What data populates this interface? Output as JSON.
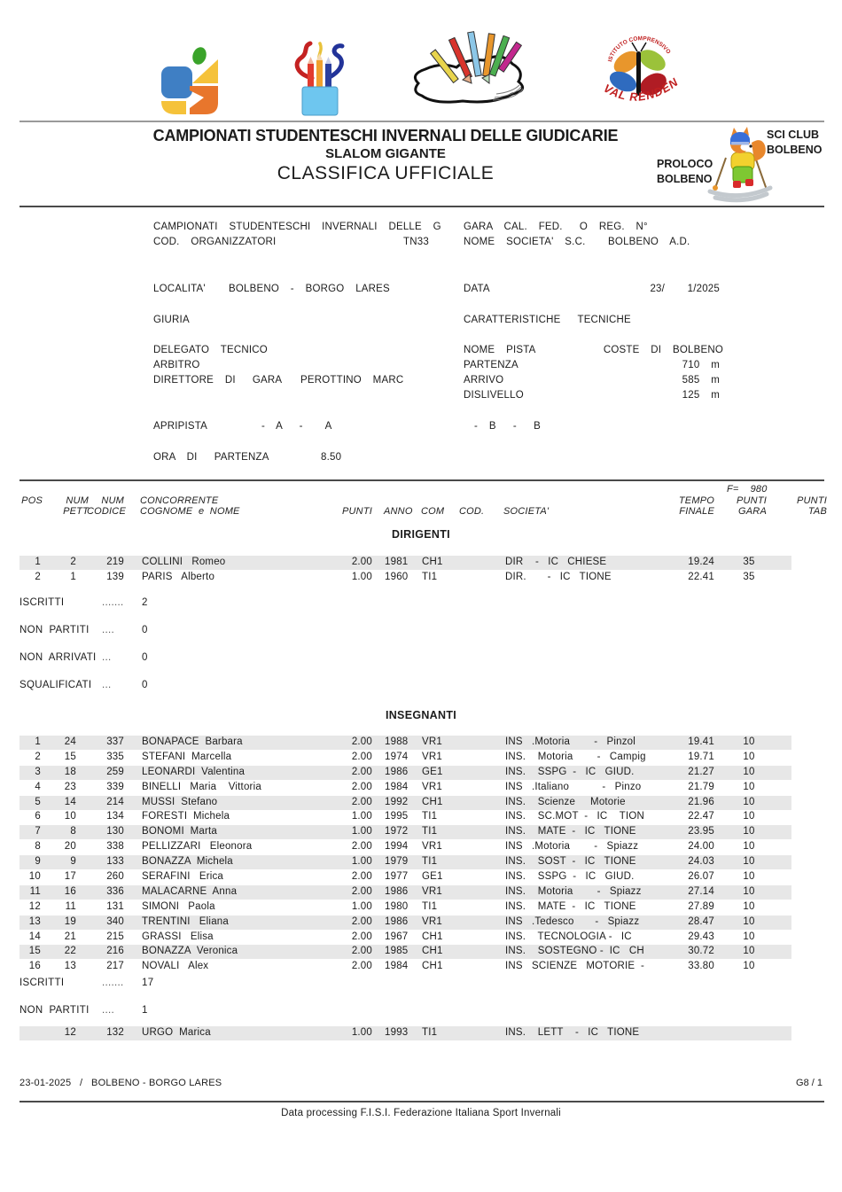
{
  "title": {
    "line1": "CAMPIONATI STUDENTESCHI INVERNALI DELLE GIUDICARIE",
    "line2": "SLALOM GIGANTE",
    "line3": "CLASSIFICA UFFICIALE"
  },
  "club_badge": {
    "sci_club": "SCI CLUB\nBOLBENO",
    "proloco": "PROLOCO\nBOLBENO"
  },
  "logos": {
    "val_rendena_text": "VAL RENDENA",
    "val_rendena_arc": "ISTITUTO COMPRENSIVO"
  },
  "info": {
    "event_line": "CAMPIONATI  STUDENTESCHI  INVERNALI  DELLE  G",
    "gara_label": "GARA  CAL.  FED.   O  REG.  N°",
    "cod_org_label": "COD.  ORGANIZZATORI",
    "cod_org_value": "TN33",
    "nome_societa": "NOME  SOCIETA'  S.C.    BOLBENO  A.D.",
    "localita_label": "LOCALITA'",
    "localita_value": "BOLBENO  -  BORGO  LARES",
    "data_label": "DATA",
    "data_value": "23/    1/2025",
    "giuria_label": "GIURIA",
    "caratteristiche_label": "CARATTERISTICHE   TECNICHE",
    "delegato_label": "DELEGATO  TECNICO",
    "nome_pista_label": "NOME  PISTA",
    "nome_pista_value": "COSTE  DI  BOLBENO",
    "arbitro_label": "ARBITRO",
    "partenza_label": "PARTENZA",
    "partenza_value": "710  m",
    "direttore_label": "DIRETTORE  DI   GARA",
    "direttore_value": "PEROTTINO  MARC",
    "arrivo_label": "ARRIVO",
    "arrivo_value": "585  m",
    "dislivello_label": "DISLIVELLO",
    "dislivello_value": "125  m",
    "apripista_label": "APRIPISTA",
    "apripista_a": "-  A   -    A",
    "apripista_b": "-  B   -   B",
    "ora_label": "ORA  DI   PARTENZA",
    "ora_value": "8.50"
  },
  "table": {
    "f_line": "F=    980",
    "headers_row1": {
      "pos": "POS",
      "pett": "NUM",
      "codice": "NUM",
      "nome": "CONCORRENTE",
      "tempo": "TEMPO",
      "gara": "PUNTI",
      "tab": "PUNTI"
    },
    "headers_row2": {
      "pett": "PETT",
      "codice": "CODICE",
      "nome": "COGNOME  e  NOME",
      "punti": "PUNTI",
      "anno": "ANNO",
      "com": "COM",
      "cod": "COD.",
      "societa": "SOCIETA'",
      "tempo": "FINALE",
      "gara": "GARA",
      "tab": "TAB"
    },
    "sections": [
      {
        "title": "DIRIGENTI",
        "rows": [
          {
            "pos": "1",
            "pett": "2",
            "codice": "219",
            "nome": "COLLINI   Romeo",
            "punti": "2.00",
            "anno": "1981",
            "com": "CH1",
            "cod": "",
            "societa": "DIR    -   IC   CHIESE",
            "tempo": "19.24",
            "gara": "35",
            "tab": "",
            "shaded": true
          },
          {
            "pos": "2",
            "pett": "1",
            "codice": "139",
            "nome": "PARIS   Alberto",
            "punti": "1.00",
            "anno": "1960",
            "com": "TI1",
            "cod": "",
            "societa": "DIR.       -   IC   TIONE",
            "tempo": "22.41",
            "gara": "35",
            "tab": "",
            "shaded": false
          }
        ],
        "stats": [
          {
            "label": "ISCRITTI",
            "dots": ".......",
            "value": "2"
          },
          {
            "label": "NON  PARTITI",
            "dots": "....",
            "value": "0"
          },
          {
            "label": "NON  ARRIVATI",
            "dots": "...",
            "value": "0"
          },
          {
            "label": "SQUALIFICATI",
            "dots": "...",
            "value": "0"
          }
        ]
      },
      {
        "title": "INSEGNANTI",
        "rows": [
          {
            "pos": "1",
            "pett": "24",
            "codice": "337",
            "nome": "BONAPACE  Barbara",
            "punti": "2.00",
            "anno": "1988",
            "com": "VR1",
            "cod": "",
            "societa": "INS   .Motoria        -   Pinzol",
            "tempo": "19.41",
            "gara": "10",
            "tab": "",
            "shaded": true
          },
          {
            "pos": "2",
            "pett": "15",
            "codice": "335",
            "nome": "STEFANI  Marcella",
            "punti": "2.00",
            "anno": "1974",
            "com": "VR1",
            "cod": "",
            "societa": "INS.    Motoria        -   Campig",
            "tempo": "19.71",
            "gara": "10",
            "tab": "",
            "shaded": false
          },
          {
            "pos": "3",
            "pett": "18",
            "codice": "259",
            "nome": "LEONARDI  Valentina",
            "punti": "2.00",
            "anno": "1986",
            "com": "GE1",
            "cod": "",
            "societa": "INS.    SSPG  -   IC   GIUD.",
            "tempo": "21.27",
            "gara": "10",
            "tab": "",
            "shaded": true
          },
          {
            "pos": "4",
            "pett": "23",
            "codice": "339",
            "nome": "BINELLI   Maria    Vittoria",
            "punti": "2.00",
            "anno": "1984",
            "com": "VR1",
            "cod": "",
            "societa": "INS   .Italiano           -   Pinzo",
            "tempo": "21.79",
            "gara": "10",
            "tab": "",
            "shaded": false
          },
          {
            "pos": "5",
            "pett": "14",
            "codice": "214",
            "nome": "MUSSI  Stefano",
            "punti": "2.00",
            "anno": "1992",
            "com": "CH1",
            "cod": "",
            "societa": "INS.    Scienze     Motorie",
            "tempo": "21.96",
            "gara": "10",
            "tab": "",
            "shaded": true
          },
          {
            "pos": "6",
            "pett": "10",
            "codice": "134",
            "nome": "FORESTI  Michela",
            "punti": "1.00",
            "anno": "1995",
            "com": "TI1",
            "cod": "",
            "societa": "INS.    SC.MOT  -   IC    TION",
            "tempo": "22.47",
            "gara": "10",
            "tab": "",
            "shaded": false
          },
          {
            "pos": "7",
            "pett": "8",
            "codice": "130",
            "nome": "BONOMI  Marta",
            "punti": "1.00",
            "anno": "1972",
            "com": "TI1",
            "cod": "",
            "societa": "INS.    MATE  -   IC   TIONE",
            "tempo": "23.95",
            "gara": "10",
            "tab": "",
            "shaded": true
          },
          {
            "pos": "8",
            "pett": "20",
            "codice": "338",
            "nome": "PELLIZZARI   Eleonora",
            "punti": "2.00",
            "anno": "1994",
            "com": "VR1",
            "cod": "",
            "societa": "INS   .Motoria        -   Spiazz",
            "tempo": "24.00",
            "gara": "10",
            "tab": "",
            "shaded": false
          },
          {
            "pos": "9",
            "pett": "9",
            "codice": "133",
            "nome": "BONAZZA  Michela",
            "punti": "1.00",
            "anno": "1979",
            "com": "TI1",
            "cod": "",
            "societa": "INS.    SOST  -   IC   TIONE",
            "tempo": "24.03",
            "gara": "10",
            "tab": "",
            "shaded": true
          },
          {
            "pos": "10",
            "pett": "17",
            "codice": "260",
            "nome": "SERAFINI   Erica",
            "punti": "2.00",
            "anno": "1977",
            "com": "GE1",
            "cod": "",
            "societa": "INS.    SSPG  -   IC   GIUD.",
            "tempo": "26.07",
            "gara": "10",
            "tab": "",
            "shaded": false
          },
          {
            "pos": "11",
            "pett": "16",
            "codice": "336",
            "nome": "MALACARNE  Anna",
            "punti": "2.00",
            "anno": "1986",
            "com": "VR1",
            "cod": "",
            "societa": "INS.    Motoria        -   Spiazz",
            "tempo": "27.14",
            "gara": "10",
            "tab": "",
            "shaded": true
          },
          {
            "pos": "12",
            "pett": "11",
            "codice": "131",
            "nome": "SIMONI   Paola",
            "punti": "1.00",
            "anno": "1980",
            "com": "TI1",
            "cod": "",
            "societa": "INS.    MATE  -   IC   TIONE",
            "tempo": "27.89",
            "gara": "10",
            "tab": "",
            "shaded": false
          },
          {
            "pos": "13",
            "pett": "19",
            "codice": "340",
            "nome": "TRENTINI   Eliana",
            "punti": "2.00",
            "anno": "1986",
            "com": "VR1",
            "cod": "",
            "societa": "INS   .Tedesco       -   Spiazz",
            "tempo": "28.47",
            "gara": "10",
            "tab": "",
            "shaded": true
          },
          {
            "pos": "14",
            "pett": "21",
            "codice": "215",
            "nome": "GRASSI   Elisa",
            "punti": "2.00",
            "anno": "1967",
            "com": "CH1",
            "cod": "",
            "societa": "INS.    TECNOLOGIA -   IC",
            "tempo": "29.43",
            "gara": "10",
            "tab": "",
            "shaded": false
          },
          {
            "pos": "15",
            "pett": "22",
            "codice": "216",
            "nome": "BONAZZA  Veronica",
            "punti": "2.00",
            "anno": "1985",
            "com": "CH1",
            "cod": "",
            "societa": "INS.    SOSTEGNO -  IC   CH",
            "tempo": "30.72",
            "gara": "10",
            "tab": "",
            "shaded": true
          },
          {
            "pos": "16",
            "pett": "13",
            "codice": "217",
            "nome": "NOVALI   Alex",
            "punti": "2.00",
            "anno": "1984",
            "com": "CH1",
            "cod": "",
            "societa": "INS   SCIENZE   MOTORIE  -",
            "tempo": "33.80",
            "gara": "10",
            "tab": "",
            "shaded": false
          }
        ],
        "stats": [
          {
            "label": "ISCRITTI",
            "dots": ".......",
            "value": "17"
          },
          {
            "label": "NON  PARTITI",
            "dots": "....",
            "value": "1"
          }
        ],
        "extra_rows": [
          {
            "pos": "",
            "pett": "12",
            "codice": "132",
            "nome": "URGO  Marica",
            "punti": "1.00",
            "anno": "1993",
            "com": "TI1",
            "cod": "",
            "societa": "INS.    LETT    -   IC   TIONE",
            "tempo": "",
            "gara": "",
            "tab": "",
            "shaded": true
          }
        ]
      }
    ]
  },
  "footer": {
    "left": "23-01-2025   /   BOLBENO - BORGO LARES",
    "right": "G8 / 1",
    "center": "Data processing F.I.S.I. Federazione Italiana Sport Invernali"
  }
}
